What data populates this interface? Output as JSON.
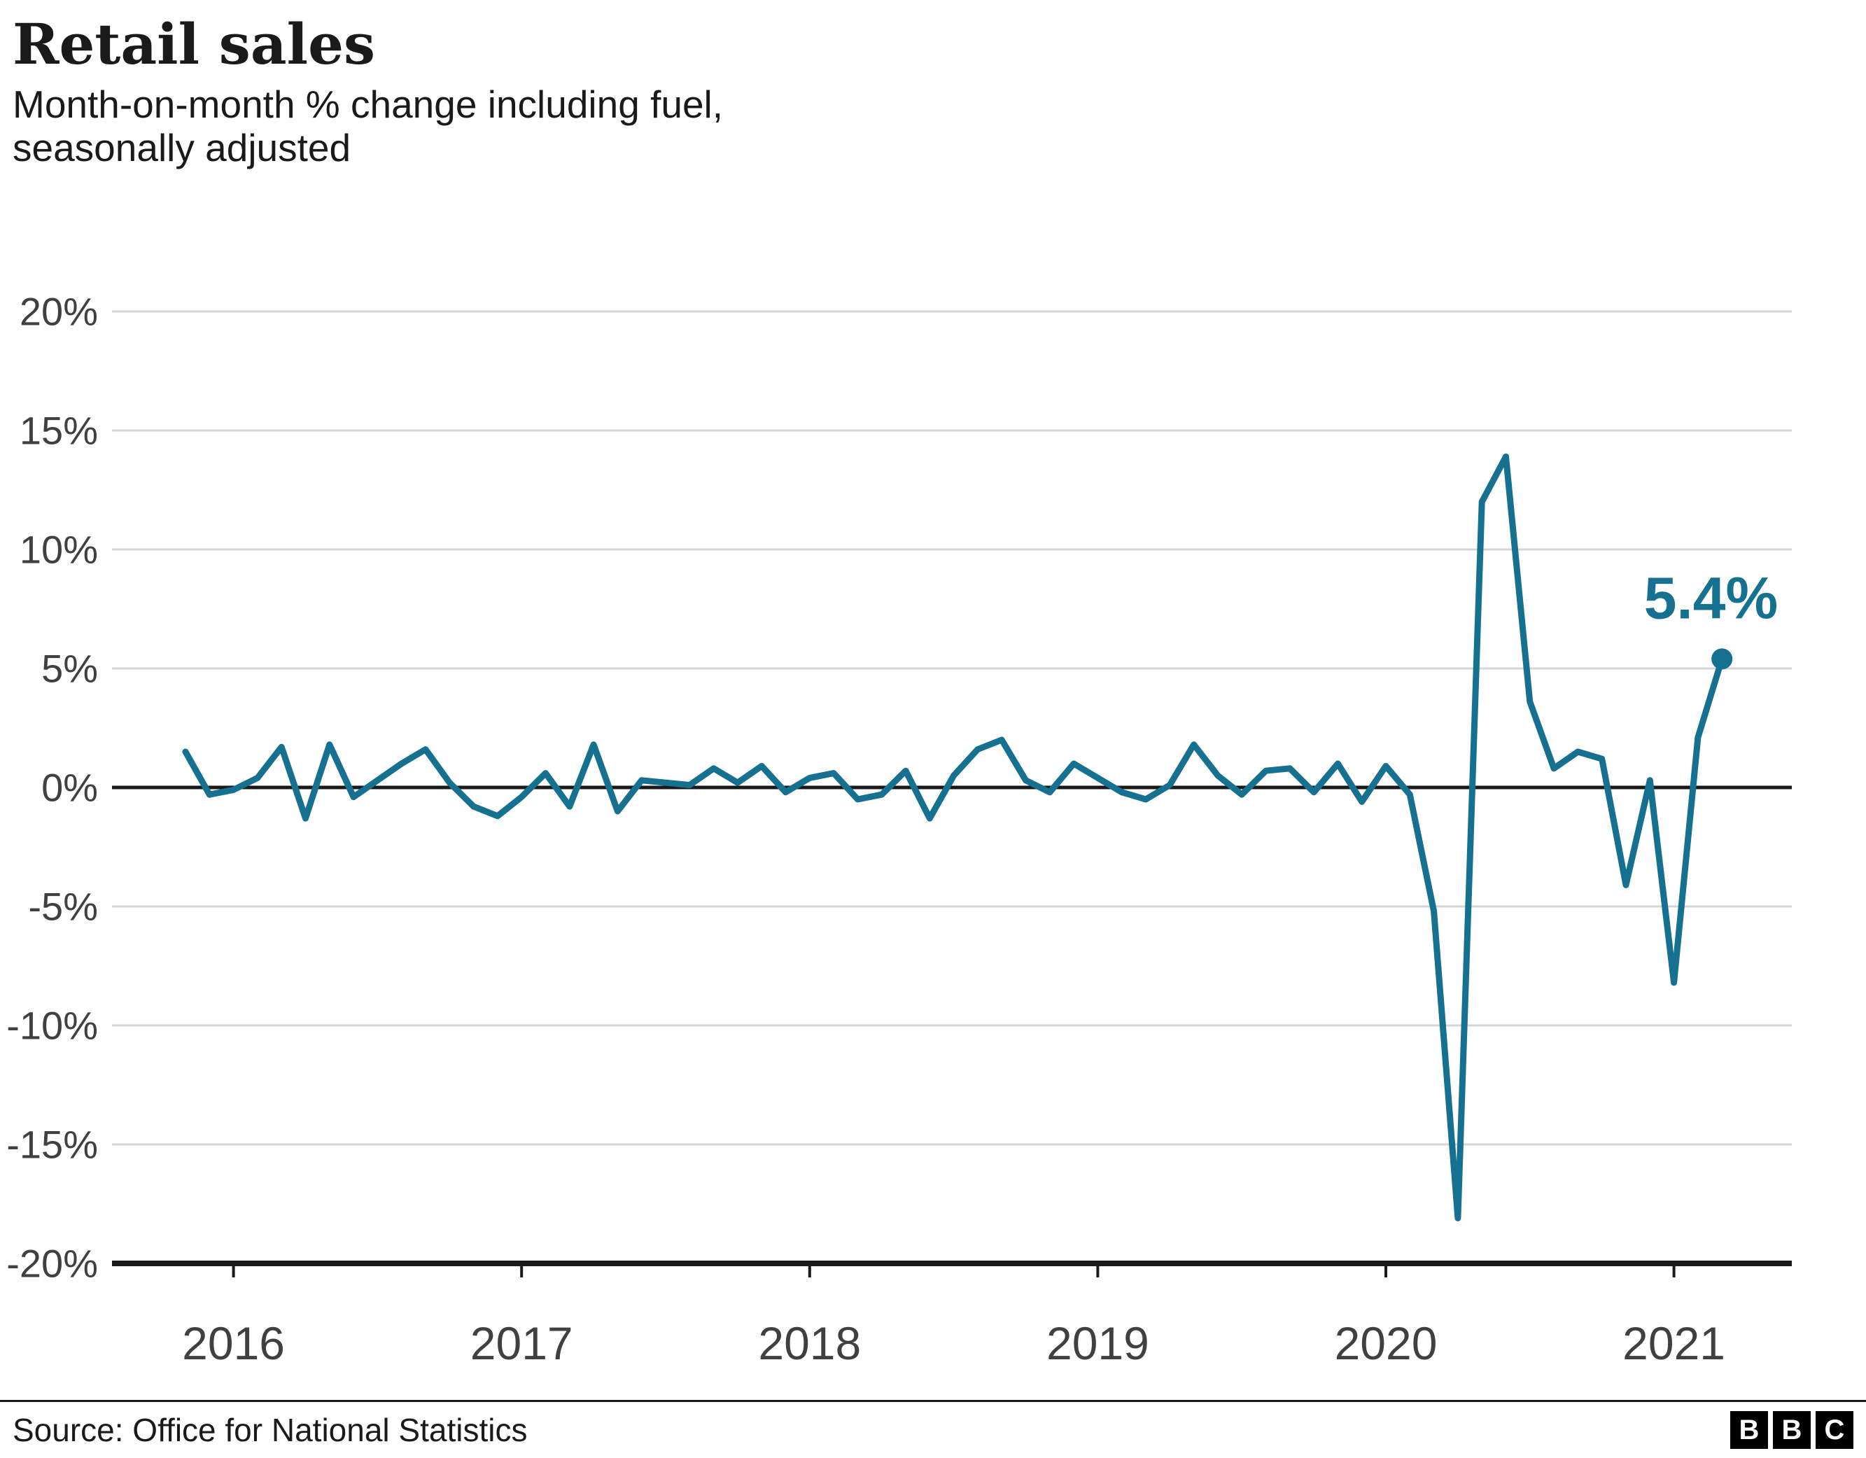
{
  "header": {
    "title": "Retail sales",
    "subtitle": "Month-on-month % change including fuel,\nseasonally adjusted"
  },
  "chart_data": {
    "type": "line",
    "title": "Retail sales",
    "subtitle": "Month-on-month % change including fuel, seasonally adjusted",
    "unit": "%",
    "grid": true,
    "legend": false,
    "ylim": [
      -20,
      20
    ],
    "line_color": "#15718f",
    "grid_color": "#d5d5d5",
    "axis_color": "#1a1a1a",
    "tick_text_color": "#404040",
    "end_label": "5.4%",
    "end_value": 5.4,
    "months": [
      "2015-11",
      "2015-12",
      "2016-01",
      "2016-02",
      "2016-03",
      "2016-04",
      "2016-05",
      "2016-06",
      "2016-07",
      "2016-08",
      "2016-09",
      "2016-10",
      "2016-11",
      "2016-12",
      "2017-01",
      "2017-02",
      "2017-03",
      "2017-04",
      "2017-05",
      "2017-06",
      "2017-07",
      "2017-08",
      "2017-09",
      "2017-10",
      "2017-11",
      "2017-12",
      "2018-01",
      "2018-02",
      "2018-03",
      "2018-04",
      "2018-05",
      "2018-06",
      "2018-07",
      "2018-08",
      "2018-09",
      "2018-10",
      "2018-11",
      "2018-12",
      "2019-01",
      "2019-02",
      "2019-03",
      "2019-04",
      "2019-05",
      "2019-06",
      "2019-07",
      "2019-08",
      "2019-09",
      "2019-10",
      "2019-11",
      "2019-12",
      "2020-01",
      "2020-02",
      "2020-03",
      "2020-04",
      "2020-05",
      "2020-06",
      "2020-07",
      "2020-08",
      "2020-09",
      "2020-10",
      "2020-11",
      "2020-12",
      "2021-01",
      "2021-02",
      "2021-03"
    ],
    "values": [
      1.5,
      -0.3,
      -0.1,
      0.4,
      1.7,
      -1.3,
      1.8,
      -0.4,
      0.3,
      1.0,
      1.6,
      0.2,
      -0.8,
      -1.2,
      -0.4,
      0.6,
      -0.8,
      1.8,
      -1.0,
      0.3,
      0.2,
      0.1,
      0.8,
      0.2,
      0.9,
      -0.2,
      0.4,
      0.6,
      -0.5,
      -0.3,
      0.7,
      -1.3,
      0.5,
      1.6,
      2.0,
      0.3,
      -0.2,
      1.0,
      0.4,
      -0.2,
      -0.5,
      0.1,
      1.8,
      0.5,
      -0.3,
      0.7,
      0.8,
      -0.2,
      1.0,
      -0.6,
      0.9,
      -0.3,
      -5.2,
      -18.1,
      12.0,
      13.9,
      3.6,
      0.8,
      1.5,
      1.2,
      -4.1,
      0.3,
      -8.2,
      2.1,
      5.4
    ],
    "yticks": [
      {
        "label": "20%",
        "value": 20
      },
      {
        "label": "15%",
        "value": 15
      },
      {
        "label": "10%",
        "value": 10
      },
      {
        "label": "5%",
        "value": 5
      },
      {
        "label": "0%",
        "value": 0
      },
      {
        "label": "-5%",
        "value": -5
      },
      {
        "label": "-10%",
        "value": -10
      },
      {
        "label": "-15%",
        "value": -15
      },
      {
        "label": "-20%",
        "value": -20
      }
    ],
    "xticks": [
      {
        "label": "2016",
        "month": "2016-01"
      },
      {
        "label": "2017",
        "month": "2017-01"
      },
      {
        "label": "2018",
        "month": "2018-01"
      },
      {
        "label": "2019",
        "month": "2019-01"
      },
      {
        "label": "2020",
        "month": "2020-01"
      },
      {
        "label": "2021",
        "month": "2021-01"
      }
    ]
  },
  "footer": {
    "source": "Source: Office for National Statistics",
    "logo_letters": [
      "B",
      "B",
      "C"
    ]
  }
}
